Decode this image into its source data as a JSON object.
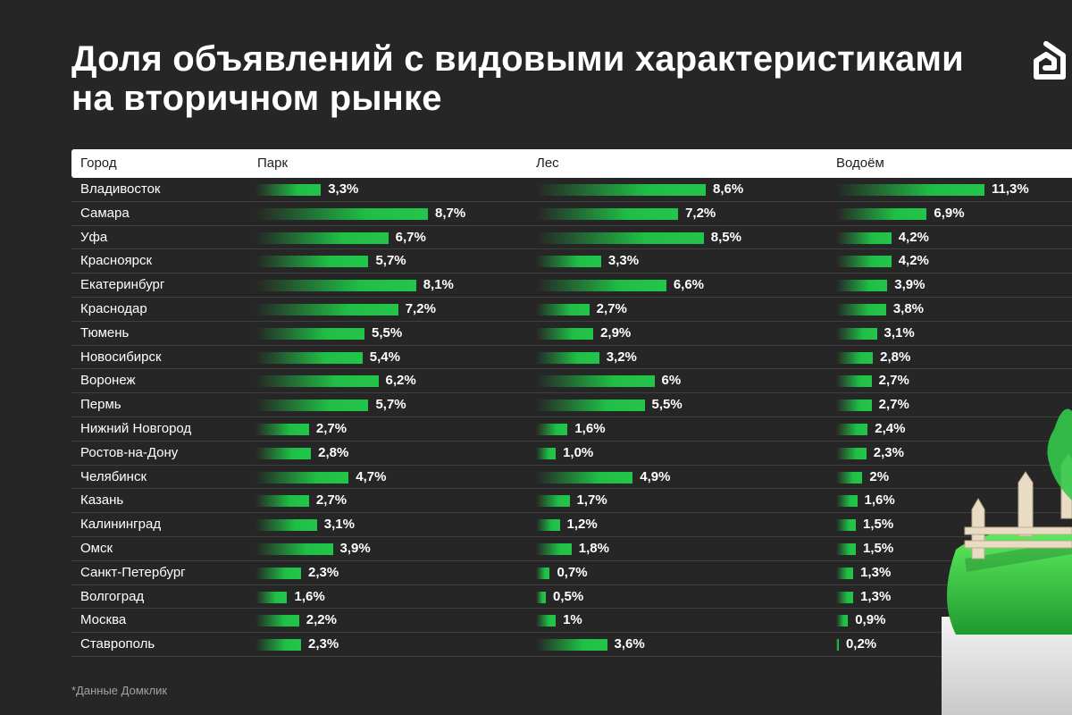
{
  "header": {
    "title_line1": "Доля объявлений с видовыми характеристиками",
    "title_line2": "на вторичном рынке"
  },
  "logo": {
    "icon": "domclick-house-logo-icon"
  },
  "colors": {
    "background": "#262626",
    "bar": "#22c54a",
    "header_bg": "#ffffff"
  },
  "chart_data": {
    "type": "table",
    "columns": [
      "Город",
      "Парк",
      "Лес",
      "Водоём"
    ],
    "series": [
      {
        "name": "Парк",
        "values": [
          3.3,
          8.7,
          6.7,
          5.7,
          8.1,
          7.2,
          5.5,
          5.4,
          6.2,
          5.7,
          2.7,
          2.8,
          4.7,
          2.7,
          3.1,
          3.9,
          2.3,
          1.6,
          2.2,
          2.3
        ],
        "labels": [
          "3,3%",
          "8,7%",
          "6,7%",
          "5,7%",
          "8,1%",
          "7,2%",
          "5,5%",
          "5,4%",
          "6,2%",
          "5,7%",
          "2,7%",
          "2,8%",
          "4,7%",
          "2,7%",
          "3,1%",
          "3,9%",
          "2,3%",
          "1,6%",
          "2,2%",
          "2,3%"
        ]
      },
      {
        "name": "Лес",
        "values": [
          8.6,
          7.2,
          8.5,
          3.3,
          6.6,
          2.7,
          2.9,
          3.2,
          6,
          5.5,
          1.6,
          1.0,
          4.9,
          1.7,
          1.2,
          1.8,
          0.7,
          0.5,
          1,
          3.6
        ],
        "labels": [
          "8,6%",
          "7,2%",
          "8,5%",
          "3,3%",
          "6,6%",
          "2,7%",
          "2,9%",
          "3,2%",
          "6%",
          "5,5%",
          "1,6%",
          "1,0%",
          "4,9%",
          "1,7%",
          "1,2%",
          "1,8%",
          "0,7%",
          "0,5%",
          "1%",
          "3,6%"
        ]
      },
      {
        "name": "Водоём",
        "values": [
          11.3,
          6.9,
          4.2,
          4.2,
          3.9,
          3.8,
          3.1,
          2.8,
          2.7,
          2.7,
          2.4,
          2.3,
          2,
          1.6,
          1.5,
          1.5,
          1.3,
          1.3,
          0.9,
          0.2
        ],
        "labels": [
          "11,3%",
          "6,9%",
          "4,2%",
          "4,2%",
          "3,9%",
          "3,8%",
          "3,1%",
          "2,8%",
          "2,7%",
          "2,7%",
          "2,4%",
          "2,3%",
          "2%",
          "1,6%",
          "1,5%",
          "1,5%",
          "1,3%",
          "1,3%",
          "0,9%",
          "0,2%"
        ]
      }
    ],
    "categories": [
      "Владивосток",
      "Самара",
      "Уфа",
      "Красноярск",
      "Екатеринбург",
      "Краснодар",
      "Тюмень",
      "Новосибирск",
      "Воронеж",
      "Пермь",
      "Нижний Новгород",
      "Ростов-на-Дону",
      "Челябинск",
      "Казань",
      "Калининград",
      "Омск",
      "Санкт-Петербург",
      "Волгоград",
      "Москва",
      "Ставрополь"
    ]
  },
  "footnote": "*Данные Домклик"
}
